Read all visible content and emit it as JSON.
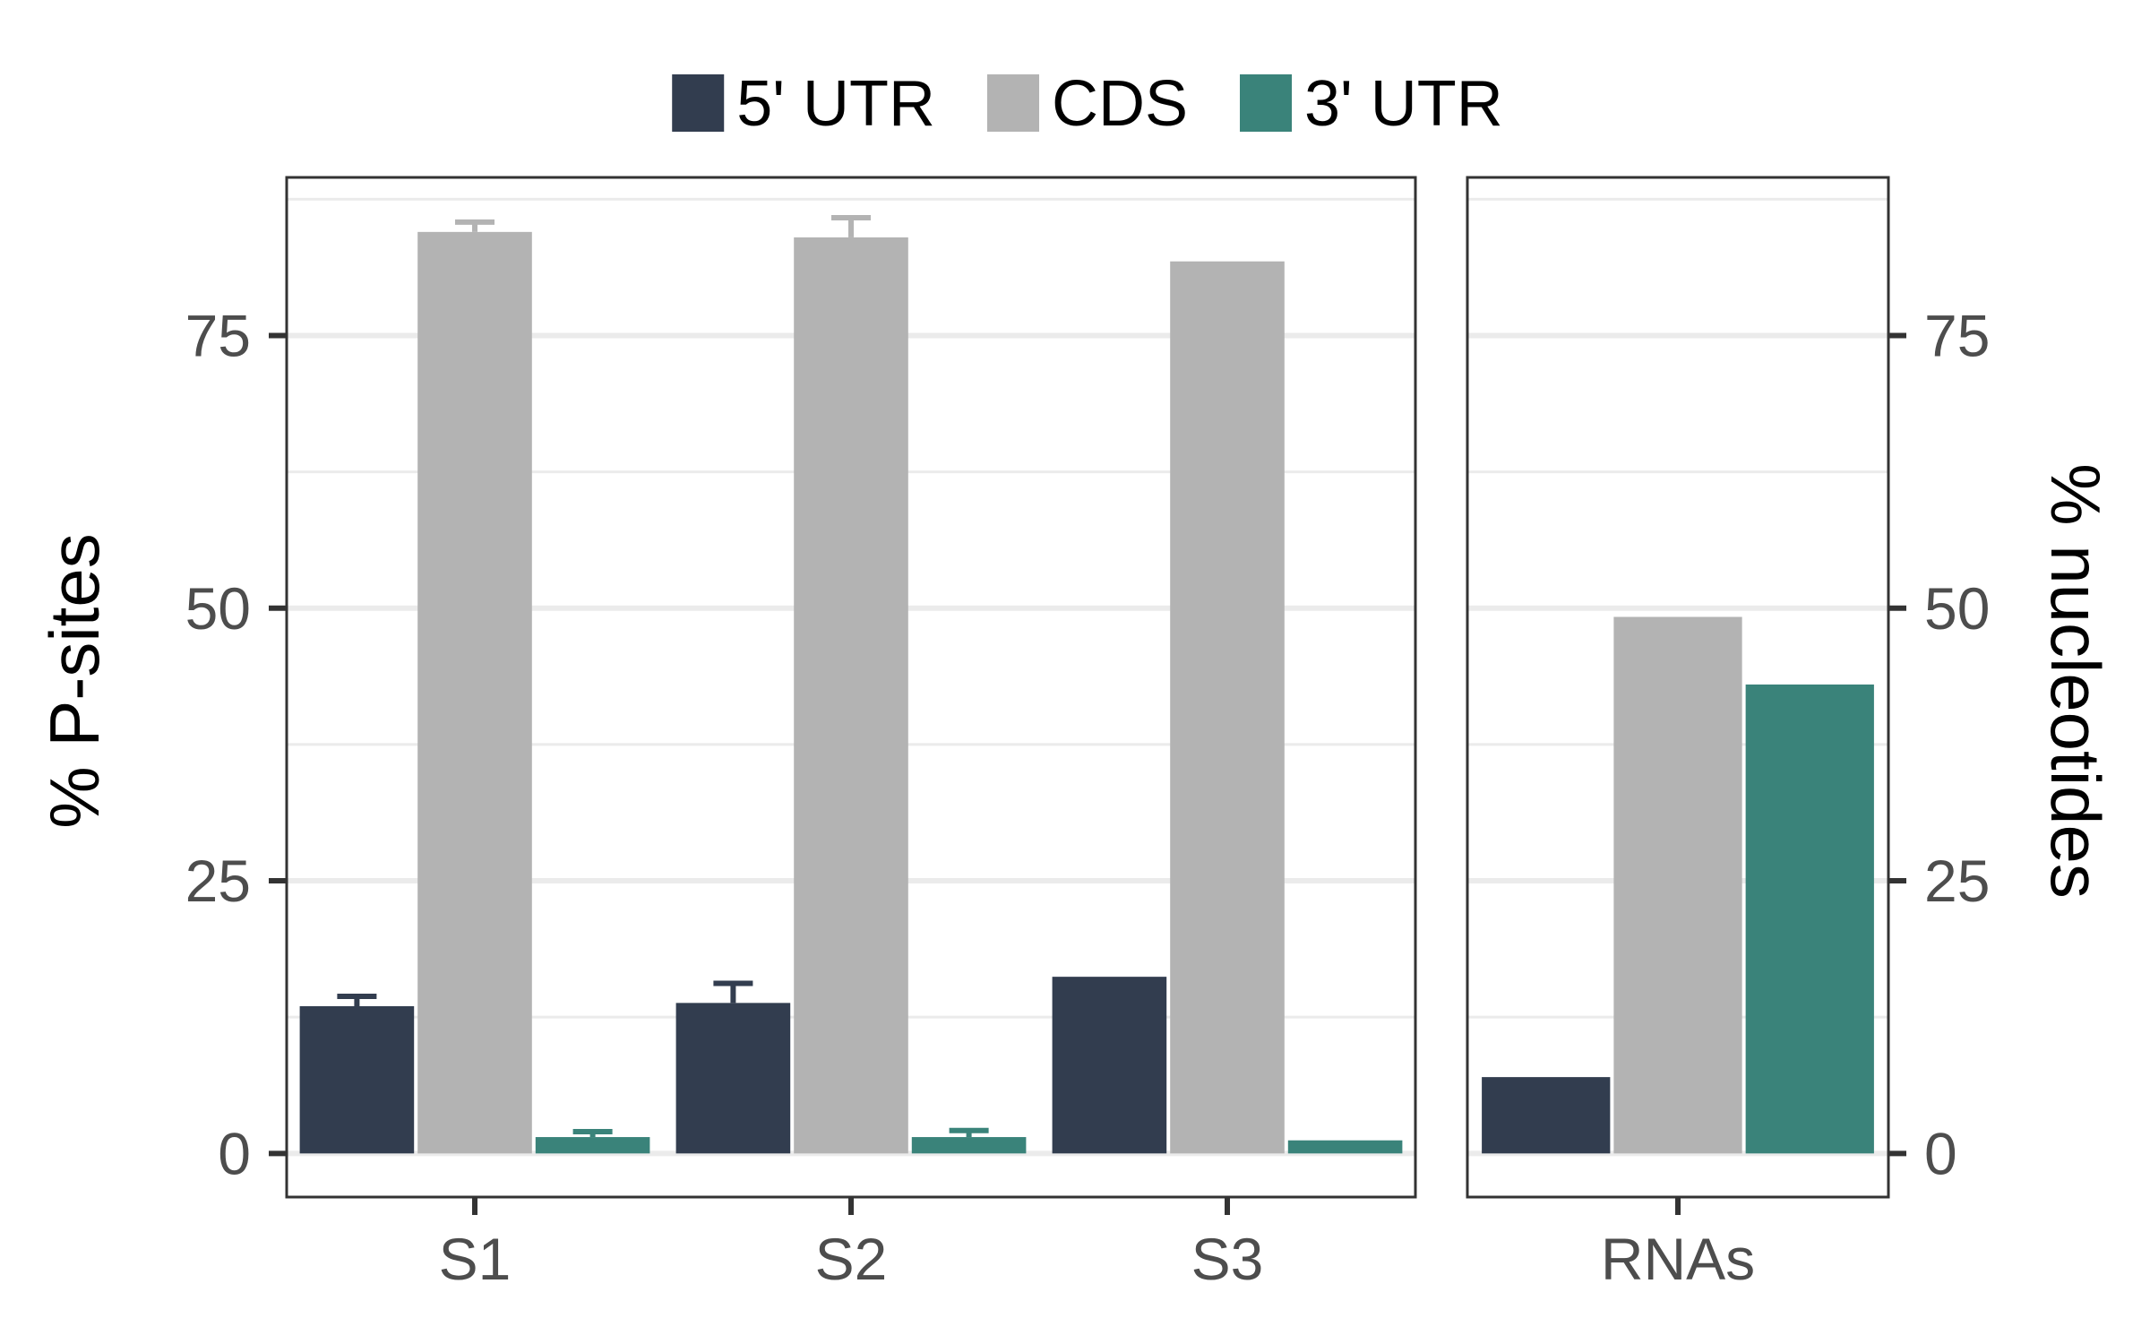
{
  "chart_data": [
    {
      "type": "bar",
      "panel": "left",
      "categories": [
        "S1",
        "S2",
        "S3"
      ],
      "series": [
        {
          "name": "5' UTR",
          "values": [
            13.5,
            13.8,
            16.2
          ],
          "error": [
            0.9,
            1.8,
            0
          ]
        },
        {
          "name": "CDS",
          "values": [
            84.5,
            84.0,
            81.8
          ],
          "error": [
            0.9,
            1.8,
            0
          ]
        },
        {
          "name": "3' UTR",
          "values": [
            1.5,
            1.5,
            1.2
          ],
          "error": [
            0.5,
            0.6,
            0
          ]
        }
      ],
      "ylabel": "% P-sites",
      "yticks": [
        0,
        25,
        50,
        75
      ],
      "ylim": [
        -4,
        89.5
      ],
      "grid": true
    },
    {
      "type": "bar",
      "panel": "right",
      "categories": [
        "RNAs"
      ],
      "series": [
        {
          "name": "5' UTR",
          "values": [
            7.0
          ]
        },
        {
          "name": "CDS",
          "values": [
            49.2
          ]
        },
        {
          "name": "3' UTR",
          "values": [
            43.0
          ]
        }
      ],
      "ylabel": "% nucleotides",
      "yticks": [
        0,
        25,
        50,
        75
      ],
      "ylim": [
        -4,
        89.5
      ],
      "grid": true
    }
  ],
  "legend": {
    "position": "top",
    "items": [
      {
        "label": "5' UTR",
        "color": "#323d4f"
      },
      {
        "label": "CDS",
        "color": "#b3b3b3"
      },
      {
        "label": "3' UTR",
        "color": "#3a837a"
      }
    ]
  },
  "colors": {
    "five_utr": "#323d4f",
    "cds": "#b3b3b3",
    "three_utr": "#3a837a",
    "grid": "#ebebeb",
    "panel_border": "#333333"
  }
}
